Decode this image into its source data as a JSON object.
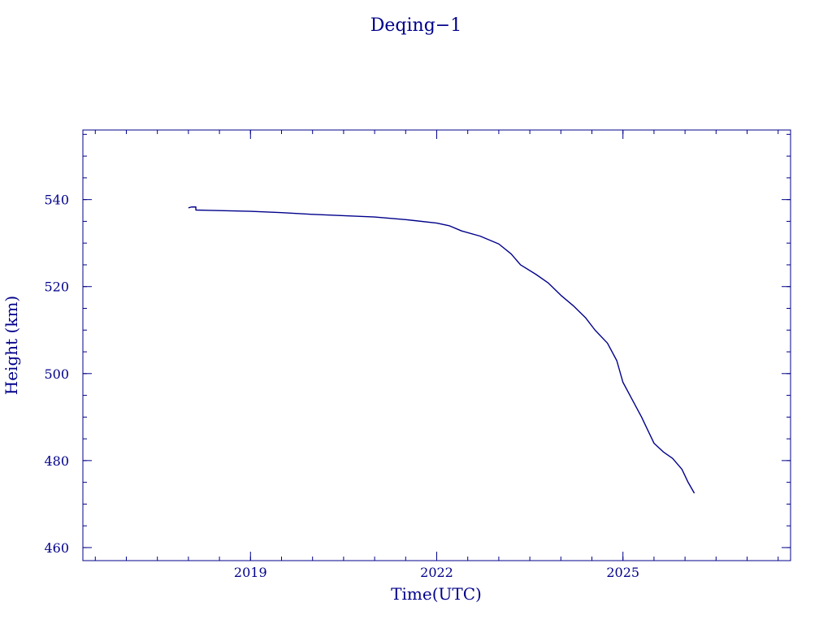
{
  "chart_data": {
    "type": "line",
    "title": "Deqing−1",
    "xlabel": "Time(UTC)",
    "ylabel": "Height (km)",
    "xlim": [
      2016.3,
      2027.7
    ],
    "ylim": [
      457,
      556
    ],
    "x_ticks": [
      2019,
      2022,
      2025
    ],
    "x_tick_labels": [
      "2019",
      "2022",
      "2025"
    ],
    "y_ticks": [
      460,
      480,
      500,
      520,
      540
    ],
    "y_tick_labels": [
      "460",
      "480",
      "500",
      "520",
      "540"
    ],
    "x_minor_step": 0.5,
    "y_minor_step": 5,
    "grid": false,
    "line_color": "#00008b",
    "series": [
      {
        "values": [
          {
            "x": 2018.0,
            "y": 538.1
          },
          {
            "x": 2018.05,
            "y": 538.3
          },
          {
            "x": 2018.12,
            "y": 538.3
          },
          {
            "x": 2018.12,
            "y": 537.6
          },
          {
            "x": 2019.0,
            "y": 537.3
          },
          {
            "x": 2019.5,
            "y": 537.0
          },
          {
            "x": 2020.0,
            "y": 536.6
          },
          {
            "x": 2020.5,
            "y": 536.3
          },
          {
            "x": 2021.0,
            "y": 536.0
          },
          {
            "x": 2021.5,
            "y": 535.4
          },
          {
            "x": 2022.0,
            "y": 534.6
          },
          {
            "x": 2022.2,
            "y": 534.0
          },
          {
            "x": 2022.4,
            "y": 532.8
          },
          {
            "x": 2022.7,
            "y": 531.6
          },
          {
            "x": 2023.0,
            "y": 529.8
          },
          {
            "x": 2023.2,
            "y": 527.5
          },
          {
            "x": 2023.35,
            "y": 525.0
          },
          {
            "x": 2023.6,
            "y": 522.8
          },
          {
            "x": 2023.8,
            "y": 520.8
          },
          {
            "x": 2024.0,
            "y": 518.0
          },
          {
            "x": 2024.2,
            "y": 515.6
          },
          {
            "x": 2024.4,
            "y": 512.8
          },
          {
            "x": 2024.55,
            "y": 510.0
          },
          {
            "x": 2024.75,
            "y": 507.0
          },
          {
            "x": 2024.9,
            "y": 503.0
          },
          {
            "x": 2025.0,
            "y": 498.0
          },
          {
            "x": 2025.15,
            "y": 494.0
          },
          {
            "x": 2025.3,
            "y": 490.0
          },
          {
            "x": 2025.4,
            "y": 487.0
          },
          {
            "x": 2025.5,
            "y": 484.0
          },
          {
            "x": 2025.65,
            "y": 482.0
          },
          {
            "x": 2025.8,
            "y": 480.5
          },
          {
            "x": 2025.95,
            "y": 478.0
          },
          {
            "x": 2026.05,
            "y": 475.0
          },
          {
            "x": 2026.15,
            "y": 472.5
          }
        ]
      }
    ]
  }
}
